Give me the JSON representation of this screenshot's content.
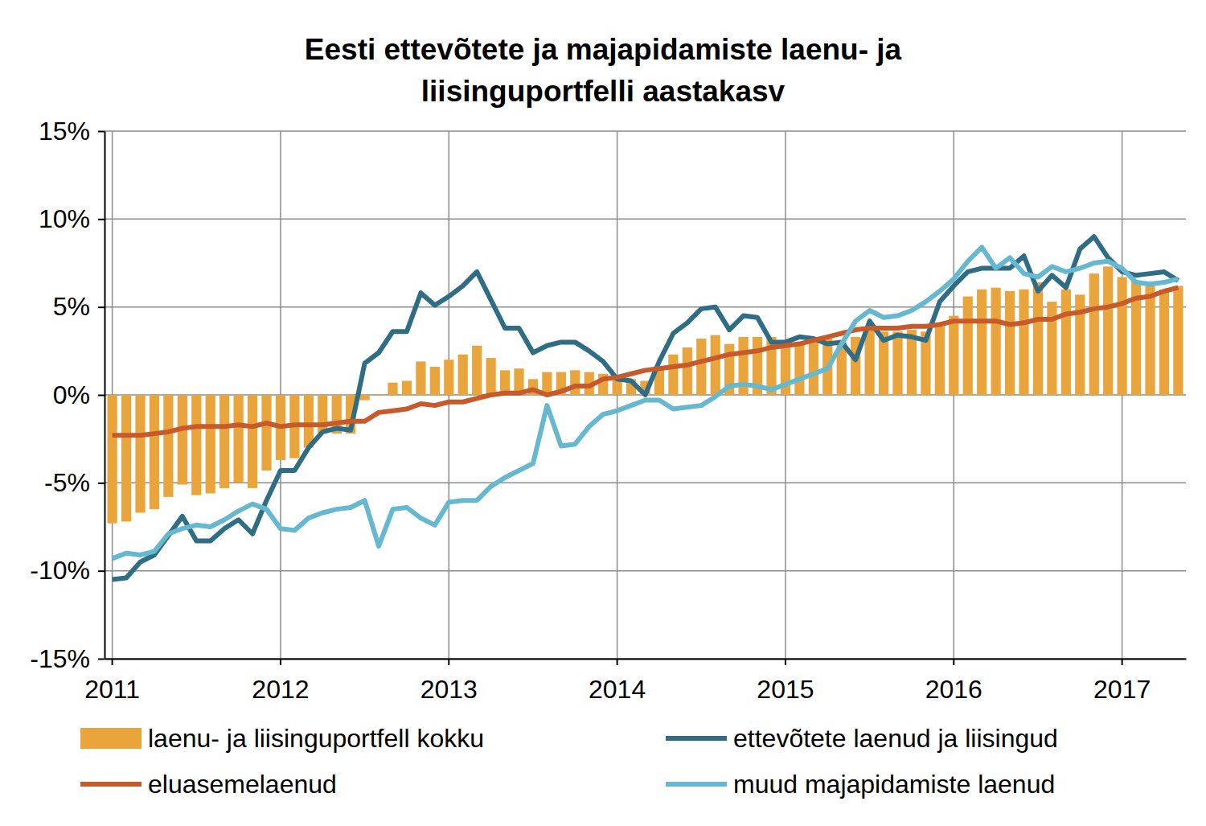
{
  "chart_data": {
    "type": "bar",
    "title": "Eesti ettevõtete ja majapidamiste laenu- ja\nliisinguportfelli aastakasv",
    "categories": [
      "2011",
      null,
      null,
      null,
      null,
      null,
      null,
      null,
      null,
      null,
      null,
      null,
      "2012",
      null,
      null,
      null,
      null,
      null,
      null,
      null,
      null,
      null,
      null,
      null,
      "2013",
      null,
      null,
      null,
      null,
      null,
      null,
      null,
      null,
      null,
      null,
      null,
      "2014",
      null,
      null,
      null,
      null,
      null,
      null,
      null,
      null,
      null,
      null,
      null,
      "2015",
      null,
      null,
      null,
      null,
      null,
      null,
      null,
      null,
      null,
      null,
      null,
      "2016",
      null,
      null,
      null,
      null,
      null,
      null,
      null,
      null,
      null,
      null,
      null,
      "2017",
      null,
      null,
      null,
      null
    ],
    "ylim": [
      -15,
      15
    ],
    "yticks": [
      {
        "value": -15,
        "label": "-15%"
      },
      {
        "value": -10,
        "label": "-10%"
      },
      {
        "value": -5,
        "label": "-5%"
      },
      {
        "value": 0,
        "label": "0%"
      },
      {
        "value": 5,
        "label": "5%"
      },
      {
        "value": 10,
        "label": "10%"
      },
      {
        "value": 15,
        "label": "15%"
      }
    ],
    "grid": true,
    "legend": "bottom",
    "series": [
      {
        "name": "laenu- ja liisinguportfell kokku",
        "type": "bar",
        "color": "#e9a43c",
        "values": [
          -7.3,
          -7.2,
          -6.7,
          -6.5,
          -5.8,
          -5.1,
          -5.7,
          -5.6,
          -5.3,
          -5.0,
          -5.3,
          -4.3,
          -3.7,
          -3.6,
          -3.0,
          -2.2,
          -2.2,
          -2.2,
          -0.3,
          -0.05,
          0.7,
          0.8,
          1.9,
          1.6,
          2.0,
          2.3,
          2.8,
          2.1,
          1.4,
          1.5,
          0.9,
          1.3,
          1.3,
          1.4,
          1.3,
          1.2,
          1.0,
          0.9,
          0.8,
          1.6,
          2.3,
          2.7,
          3.2,
          3.4,
          2.9,
          3.3,
          3.3,
          3.3,
          2.8,
          3.0,
          3.0,
          3.2,
          3.0,
          3.3,
          3.8,
          3.6,
          3.6,
          3.7,
          3.6,
          3.9,
          4.5,
          5.6,
          6.0,
          6.1,
          5.9,
          6.0,
          6.4,
          5.3,
          6.0,
          5.7,
          6.9,
          7.3,
          6.7,
          6.5,
          6.2,
          6.0,
          6.2
        ]
      },
      {
        "name": "ettevõtete laenud ja liisingud",
        "type": "line",
        "color": "#2f6d84",
        "values": [
          -10.5,
          -10.4,
          -9.5,
          -9.1,
          -8.0,
          -6.9,
          -8.3,
          -8.3,
          -7.6,
          -7.1,
          -7.9,
          -6.0,
          -4.3,
          -4.3,
          -3.0,
          -2.1,
          -1.9,
          -2.0,
          1.8,
          2.4,
          3.6,
          3.6,
          5.8,
          5.1,
          5.6,
          6.2,
          7.0,
          5.4,
          3.8,
          3.8,
          2.4,
          2.8,
          3.0,
          3.0,
          2.5,
          1.9,
          0.9,
          0.8,
          0.0,
          1.9,
          3.5,
          4.1,
          4.9,
          5.0,
          3.7,
          4.5,
          4.4,
          3.0,
          3.0,
          3.3,
          3.2,
          2.9,
          3.0,
          2.0,
          4.2,
          3.1,
          3.4,
          3.3,
          3.1,
          5.3,
          6.2,
          7.0,
          7.2,
          7.2,
          7.2,
          7.9,
          5.9,
          6.8,
          6.1,
          8.3,
          9.0,
          7.8,
          7.0,
          6.8,
          6.9,
          7.0,
          6.5
        ]
      },
      {
        "name": "eluasemelaenud",
        "type": "line",
        "color": "#c75a2b",
        "values": [
          -2.3,
          -2.3,
          -2.3,
          -2.2,
          -2.1,
          -1.9,
          -1.8,
          -1.8,
          -1.8,
          -1.7,
          -1.8,
          -1.6,
          -1.8,
          -1.7,
          -1.7,
          -1.7,
          -1.6,
          -1.5,
          -1.5,
          -1.0,
          -0.9,
          -0.8,
          -0.5,
          -0.6,
          -0.4,
          -0.4,
          -0.2,
          0.0,
          0.1,
          0.1,
          0.3,
          0.0,
          0.2,
          0.5,
          0.5,
          0.9,
          1.0,
          1.2,
          1.4,
          1.5,
          1.6,
          1.7,
          1.9,
          2.1,
          2.3,
          2.4,
          2.5,
          2.7,
          2.8,
          2.9,
          3.1,
          3.3,
          3.5,
          3.7,
          3.8,
          3.8,
          3.8,
          3.9,
          3.9,
          4.0,
          4.2,
          4.2,
          4.2,
          4.2,
          4.0,
          4.1,
          4.3,
          4.3,
          4.6,
          4.7,
          4.9,
          5.0,
          5.2,
          5.5,
          5.6,
          5.9,
          6.1
        ]
      },
      {
        "name": "muud majapidamiste laenud",
        "type": "line",
        "color": "#66b8d0",
        "values": [
          -9.3,
          -9.0,
          -9.1,
          -8.9,
          -7.9,
          -7.6,
          -7.4,
          -7.5,
          -7.1,
          -6.6,
          -6.2,
          -6.5,
          -7.6,
          -7.7,
          -7.0,
          -6.7,
          -6.5,
          -6.4,
          -6.0,
          -8.6,
          -6.5,
          -6.4,
          -7.0,
          -7.4,
          -6.1,
          -6.0,
          -6.0,
          -5.2,
          -4.7,
          -4.3,
          -3.9,
          -0.6,
          -2.9,
          -2.8,
          -1.8,
          -1.1,
          -0.9,
          -0.6,
          -0.3,
          -0.3,
          -0.8,
          -0.7,
          -0.6,
          -0.1,
          0.5,
          0.6,
          0.5,
          0.3,
          0.6,
          0.9,
          1.2,
          1.5,
          2.9,
          4.2,
          4.8,
          4.4,
          4.5,
          4.8,
          5.3,
          5.9,
          6.6,
          7.6,
          8.4,
          7.2,
          7.8,
          6.9,
          6.7,
          7.3,
          7.0,
          7.2,
          7.5,
          7.6,
          7.2,
          6.4,
          6.3,
          6.4,
          6.6
        ]
      }
    ]
  }
}
